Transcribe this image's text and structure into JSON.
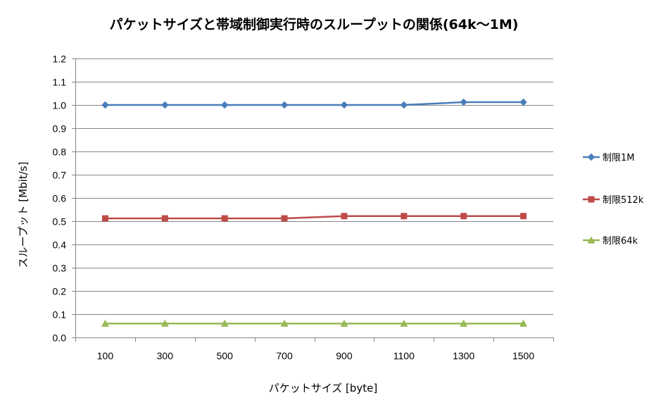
{
  "chart_data": {
    "type": "line",
    "title": "パケットサイズと帯域制御実行時のスループットの関係(64k〜1M)",
    "xlabel": "パケットサイズ [byte]",
    "ylabel": "スループット [Mbit/s]",
    "categories": [
      "100",
      "300",
      "500",
      "700",
      "900",
      "1100",
      "1300",
      "1500"
    ],
    "ylim": [
      0,
      1.2
    ],
    "yticks": [
      "0.0",
      "0.1",
      "0.2",
      "0.3",
      "0.4",
      "0.5",
      "0.6",
      "0.7",
      "0.8",
      "0.9",
      "1.0",
      "1.1",
      "1.2"
    ],
    "grid": true,
    "legend_position": "right",
    "series": [
      {
        "name": "制限1M",
        "color": "#4a7ebb",
        "marker": "diamond",
        "values": [
          1.0,
          1.0,
          1.0,
          1.0,
          1.0,
          1.0,
          1.012,
          1.012
        ]
      },
      {
        "name": "制限512k",
        "color": "#be4b48",
        "marker": "square",
        "values": [
          0.512,
          0.512,
          0.512,
          0.512,
          0.522,
          0.522,
          0.522,
          0.522
        ]
      },
      {
        "name": "制限64k",
        "color": "#98b954",
        "marker": "triangle",
        "values": [
          0.06,
          0.06,
          0.06,
          0.06,
          0.06,
          0.06,
          0.06,
          0.06
        ]
      }
    ]
  }
}
